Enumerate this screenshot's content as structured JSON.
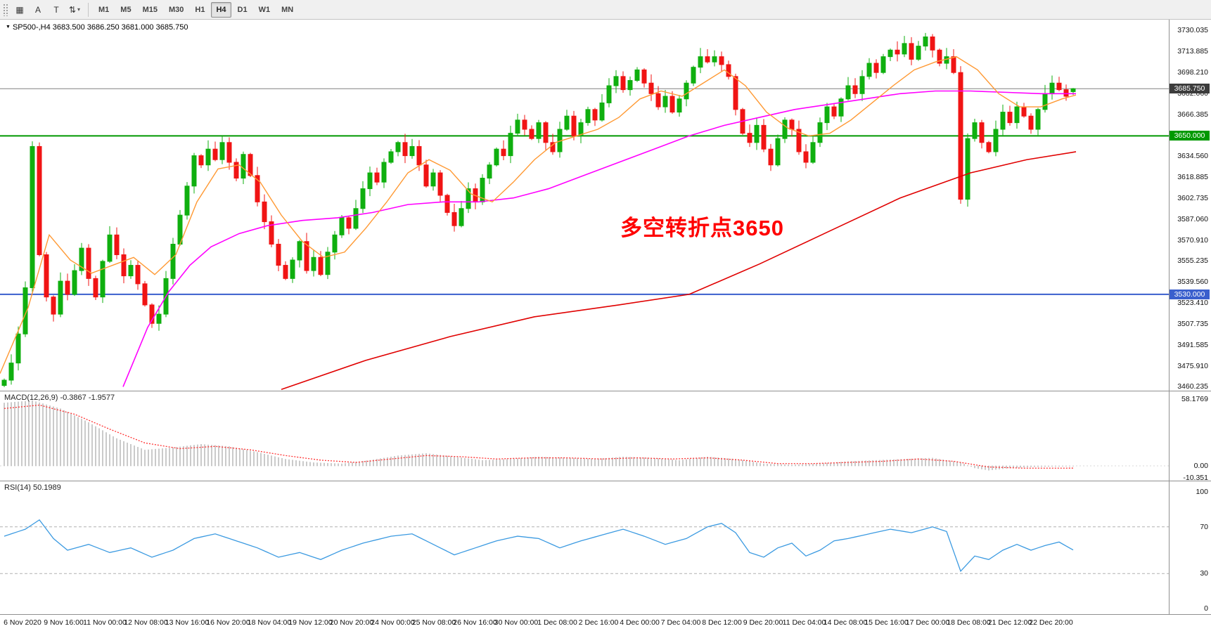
{
  "toolbar": {
    "items": [
      {
        "type": "grip",
        "name": "toolbar-grip"
      },
      {
        "type": "icon",
        "name": "chart-window-icon",
        "glyph": "▦"
      },
      {
        "type": "button",
        "name": "text-tool-button",
        "glyph": "A"
      },
      {
        "type": "button",
        "name": "frame-tool-button",
        "glyph": "T"
      },
      {
        "type": "icon",
        "name": "indicators-dropdown",
        "glyph": "⇅",
        "caret": "▾"
      },
      {
        "type": "separator",
        "name": "toolbar-separator"
      }
    ],
    "timeframes": [
      {
        "label": "M1",
        "active": false
      },
      {
        "label": "M5",
        "active": false
      },
      {
        "label": "M15",
        "active": false
      },
      {
        "label": "M30",
        "active": false
      },
      {
        "label": "H1",
        "active": false
      },
      {
        "label": "H4",
        "active": true
      },
      {
        "label": "D1",
        "active": false
      },
      {
        "label": "W1",
        "active": false
      },
      {
        "label": "MN",
        "active": false
      }
    ]
  },
  "chart": {
    "title": "SP500-,H4 3683.500 3686.250 3681.000 3685.750",
    "annotation": "多空转折点3650"
  },
  "chart_data": {
    "type": "candlestick",
    "symbol": "SP500-",
    "period": "H4",
    "ohlc_last": {
      "open": 3683.5,
      "high": 3686.25,
      "low": 3681.0,
      "close": 3685.75
    },
    "price_axis": {
      "min": 3460.235,
      "max": 3730.035,
      "tick_labels": [
        "3730.035",
        "3713.885",
        "3698.210",
        "3682.060",
        "3666.385",
        "3650.710",
        "3634.560",
        "3618.885",
        "3602.735",
        "3587.060",
        "3570.910",
        "3555.235",
        "3539.560",
        "3523.410",
        "3507.735",
        "3491.585",
        "3475.910",
        "3460.235"
      ]
    },
    "time_axis_labels": [
      "6 Nov 2020",
      "9 Nov 16:00",
      "11 Nov 00:00",
      "12 Nov 08:00",
      "13 Nov 16:00",
      "16 Nov 20:00",
      "18 Nov 04:00",
      "19 Nov 12:00",
      "20 Nov 20:00",
      "24 Nov 00:00",
      "25 Nov 08:00",
      "26 Nov 16:00",
      "30 Nov 00:00",
      "1 Dec 08:00",
      "2 Dec 16:00",
      "4 Dec 00:00",
      "7 Dec 04:00",
      "8 Dec 12:00",
      "9 Dec 20:00",
      "11 Dec 04:00",
      "14 Dec 08:00",
      "15 Dec 16:00",
      "17 Dec 00:00",
      "18 Dec 08:00",
      "21 Dec 12:00",
      "22 Dec 20:00"
    ],
    "closes": [
      3465,
      3478,
      3500,
      3535,
      3642,
      3560,
      3528,
      3515,
      3540,
      3530,
      3548,
      3565,
      3542,
      3528,
      3555,
      3575,
      3560,
      3544,
      3552,
      3538,
      3522,
      3508,
      3515,
      3542,
      3568,
      3590,
      3612,
      3635,
      3628,
      3640,
      3632,
      3645,
      3630,
      3618,
      3636,
      3620,
      3600,
      3585,
      3568,
      3552,
      3542,
      3556,
      3570,
      3548,
      3558,
      3545,
      3562,
      3575,
      3588,
      3580,
      3595,
      3610,
      3622,
      3615,
      3630,
      3638,
      3645,
      3635,
      3642,
      3628,
      3612,
      3622,
      3605,
      3592,
      3582,
      3595,
      3610,
      3600,
      3618,
      3628,
      3640,
      3635,
      3652,
      3662,
      3655,
      3648,
      3660,
      3645,
      3638,
      3655,
      3665,
      3650,
      3660,
      3670,
      3662,
      3675,
      3688,
      3695,
      3685,
      3692,
      3700,
      3690,
      3682,
      3672,
      3680,
      3668,
      3678,
      3690,
      3702,
      3710,
      3706,
      3710,
      3704,
      3695,
      3670,
      3652,
      3645,
      3658,
      3640,
      3628,
      3648,
      3662,
      3655,
      3638,
      3630,
      3645,
      3660,
      3672,
      3665,
      3678,
      3688,
      3682,
      3695,
      3705,
      3698,
      3710,
      3715,
      3712,
      3720,
      3708,
      3718,
      3725,
      3715,
      3705,
      3710,
      3698,
      3602,
      3648,
      3660,
      3645,
      3638,
      3655,
      3668,
      3660,
      3672,
      3665,
      3655,
      3670,
      3682,
      3690,
      3685,
      3680,
      3685.75
    ],
    "ma_fast_orange": [
      [
        0,
        3470
      ],
      [
        40,
        3520
      ],
      [
        70,
        3575
      ],
      [
        100,
        3556
      ],
      [
        130,
        3546
      ],
      [
        160,
        3552
      ],
      [
        190,
        3558
      ],
      [
        220,
        3545
      ],
      [
        250,
        3560
      ],
      [
        280,
        3600
      ],
      [
        310,
        3625
      ],
      [
        340,
        3628
      ],
      [
        370,
        3615
      ],
      [
        400,
        3590
      ],
      [
        430,
        3570
      ],
      [
        460,
        3558
      ],
      [
        490,
        3562
      ],
      [
        520,
        3580
      ],
      [
        550,
        3600
      ],
      [
        580,
        3622
      ],
      [
        610,
        3632
      ],
      [
        640,
        3624
      ],
      [
        670,
        3606
      ],
      [
        700,
        3600
      ],
      [
        730,
        3615
      ],
      [
        760,
        3632
      ],
      [
        790,
        3645
      ],
      [
        820,
        3650
      ],
      [
        850,
        3655
      ],
      [
        880,
        3664
      ],
      [
        910,
        3678
      ],
      [
        940,
        3684
      ],
      [
        970,
        3680
      ],
      [
        1000,
        3690
      ],
      [
        1030,
        3700
      ],
      [
        1060,
        3688
      ],
      [
        1090,
        3668
      ],
      [
        1120,
        3656
      ],
      [
        1150,
        3650
      ],
      [
        1180,
        3652
      ],
      [
        1210,
        3662
      ],
      [
        1240,
        3675
      ],
      [
        1270,
        3688
      ],
      [
        1300,
        3700
      ],
      [
        1330,
        3706
      ],
      [
        1360,
        3710
      ],
      [
        1390,
        3700
      ],
      [
        1420,
        3682
      ],
      [
        1450,
        3672
      ],
      [
        1480,
        3672
      ],
      [
        1510,
        3678
      ],
      [
        1530,
        3681
      ]
    ],
    "ma_mid_magenta": [
      [
        175,
        3460
      ],
      [
        210,
        3505
      ],
      [
        240,
        3532
      ],
      [
        270,
        3552
      ],
      [
        300,
        3566
      ],
      [
        340,
        3576
      ],
      [
        380,
        3582
      ],
      [
        430,
        3586
      ],
      [
        480,
        3588
      ],
      [
        530,
        3592
      ],
      [
        580,
        3598
      ],
      [
        630,
        3600
      ],
      [
        680,
        3600
      ],
      [
        730,
        3603
      ],
      [
        780,
        3610
      ],
      [
        830,
        3620
      ],
      [
        880,
        3630
      ],
      [
        930,
        3640
      ],
      [
        980,
        3650
      ],
      [
        1030,
        3658
      ],
      [
        1080,
        3664
      ],
      [
        1130,
        3670
      ],
      [
        1180,
        3674
      ],
      [
        1230,
        3678
      ],
      [
        1280,
        3682
      ],
      [
        1330,
        3684
      ],
      [
        1380,
        3684
      ],
      [
        1430,
        3683
      ],
      [
        1480,
        3682
      ],
      [
        1530,
        3682
      ]
    ],
    "ma_slow_red": [
      [
        400,
        3458
      ],
      [
        520,
        3480
      ],
      [
        640,
        3498
      ],
      [
        760,
        3513
      ],
      [
        880,
        3522
      ],
      [
        980,
        3530
      ],
      [
        1080,
        3553
      ],
      [
        1180,
        3578
      ],
      [
        1280,
        3603
      ],
      [
        1380,
        3622
      ],
      [
        1460,
        3632
      ],
      [
        1530,
        3638
      ]
    ],
    "hlines": [
      {
        "price": 3650.0,
        "label": "3650.000",
        "color": "#009900"
      },
      {
        "price": 3530.0,
        "label": "3530.000",
        "color": "#3a5fcd"
      }
    ],
    "current_price": {
      "value": 3685.75,
      "label": "3685.750"
    },
    "macd": {
      "label": "MACD(12,26,9) -0.3867 -1.9577",
      "value": -0.3867,
      "signal": -1.9577,
      "axis": [
        {
          "text": "58.1769",
          "value": 58.1769
        },
        {
          "text": "0.00",
          "value": 0
        },
        {
          "text": "-10.351",
          "value": -10.351
        }
      ],
      "hist_anchors": [
        [
          0,
          55
        ],
        [
          4,
          57
        ],
        [
          8,
          50
        ],
        [
          12,
          38
        ],
        [
          16,
          24
        ],
        [
          20,
          14
        ],
        [
          24,
          16
        ],
        [
          28,
          19
        ],
        [
          32,
          17
        ],
        [
          36,
          12
        ],
        [
          40,
          6
        ],
        [
          44,
          3
        ],
        [
          48,
          2
        ],
        [
          52,
          5
        ],
        [
          56,
          9
        ],
        [
          60,
          11
        ],
        [
          64,
          8
        ],
        [
          68,
          5
        ],
        [
          72,
          6
        ],
        [
          76,
          8
        ],
        [
          80,
          7
        ],
        [
          84,
          6
        ],
        [
          88,
          8
        ],
        [
          92,
          7
        ],
        [
          96,
          5
        ],
        [
          100,
          8
        ],
        [
          104,
          6
        ],
        [
          108,
          2
        ],
        [
          112,
          1
        ],
        [
          116,
          2
        ],
        [
          120,
          4
        ],
        [
          124,
          5
        ],
        [
          128,
          6
        ],
        [
          132,
          7
        ],
        [
          136,
          3
        ],
        [
          138,
          -2
        ],
        [
          140,
          -4
        ],
        [
          143,
          -2
        ],
        [
          146,
          -1
        ],
        [
          149,
          -0.6
        ],
        [
          152,
          -0.4
        ]
      ],
      "signal_anchors": [
        [
          0,
          50
        ],
        [
          5,
          53
        ],
        [
          10,
          45
        ],
        [
          15,
          32
        ],
        [
          20,
          20
        ],
        [
          25,
          15
        ],
        [
          30,
          17
        ],
        [
          35,
          14
        ],
        [
          40,
          9
        ],
        [
          45,
          5
        ],
        [
          50,
          3
        ],
        [
          55,
          6
        ],
        [
          60,
          9
        ],
        [
          65,
          8
        ],
        [
          70,
          6
        ],
        [
          75,
          7
        ],
        [
          80,
          7
        ],
        [
          85,
          6
        ],
        [
          90,
          7
        ],
        [
          95,
          6
        ],
        [
          100,
          7
        ],
        [
          105,
          5
        ],
        [
          110,
          2
        ],
        [
          115,
          2
        ],
        [
          120,
          3
        ],
        [
          125,
          4
        ],
        [
          130,
          6
        ],
        [
          135,
          4
        ],
        [
          140,
          -1
        ],
        [
          145,
          -2
        ],
        [
          148,
          -2
        ],
        [
          152,
          -1.96
        ]
      ]
    },
    "rsi": {
      "label": "RSI(14) 50.1989",
      "value": 50.1989,
      "axis": [
        {
          "text": "100",
          "value": 100
        },
        {
          "text": "70",
          "value": 70
        },
        {
          "text": "30",
          "value": 30
        },
        {
          "text": "0",
          "value": 0
        }
      ],
      "levels": [
        70,
        30
      ],
      "anchors": [
        [
          0,
          62
        ],
        [
          3,
          68
        ],
        [
          5,
          76
        ],
        [
          7,
          60
        ],
        [
          9,
          50
        ],
        [
          12,
          55
        ],
        [
          15,
          48
        ],
        [
          18,
          52
        ],
        [
          21,
          44
        ],
        [
          24,
          50
        ],
        [
          27,
          60
        ],
        [
          30,
          64
        ],
        [
          33,
          58
        ],
        [
          36,
          52
        ],
        [
          39,
          44
        ],
        [
          42,
          48
        ],
        [
          45,
          42
        ],
        [
          48,
          50
        ],
        [
          51,
          56
        ],
        [
          55,
          62
        ],
        [
          58,
          64
        ],
        [
          61,
          55
        ],
        [
          64,
          46
        ],
        [
          67,
          52
        ],
        [
          70,
          58
        ],
        [
          73,
          62
        ],
        [
          76,
          60
        ],
        [
          79,
          52
        ],
        [
          82,
          58
        ],
        [
          85,
          63
        ],
        [
          88,
          68
        ],
        [
          91,
          62
        ],
        [
          94,
          55
        ],
        [
          97,
          60
        ],
        [
          100,
          70
        ],
        [
          102,
          73
        ],
        [
          104,
          65
        ],
        [
          106,
          48
        ],
        [
          108,
          44
        ],
        [
          110,
          52
        ],
        [
          112,
          56
        ],
        [
          114,
          45
        ],
        [
          116,
          50
        ],
        [
          118,
          58
        ],
        [
          120,
          60
        ],
        [
          123,
          64
        ],
        [
          126,
          68
        ],
        [
          129,
          65
        ],
        [
          132,
          70
        ],
        [
          134,
          66
        ],
        [
          136,
          32
        ],
        [
          138,
          45
        ],
        [
          140,
          42
        ],
        [
          142,
          50
        ],
        [
          144,
          55
        ],
        [
          146,
          50
        ],
        [
          148,
          54
        ],
        [
          150,
          57
        ],
        [
          152,
          50.2
        ]
      ]
    },
    "colors": {
      "up": "#0faf0f",
      "down": "#f01414",
      "ma_fast": "#ff9933",
      "ma_mid": "#ff00ff",
      "ma_slow": "#e00000",
      "price_line": "#808080",
      "price_box_bg": "#3c3c3c",
      "macd_hist": "#bdbdbd",
      "macd_signal": "#ff3333",
      "rsi_line": "#3b9ae1",
      "level_dash": "#b0b0b0",
      "divider": "#909090"
    }
  }
}
